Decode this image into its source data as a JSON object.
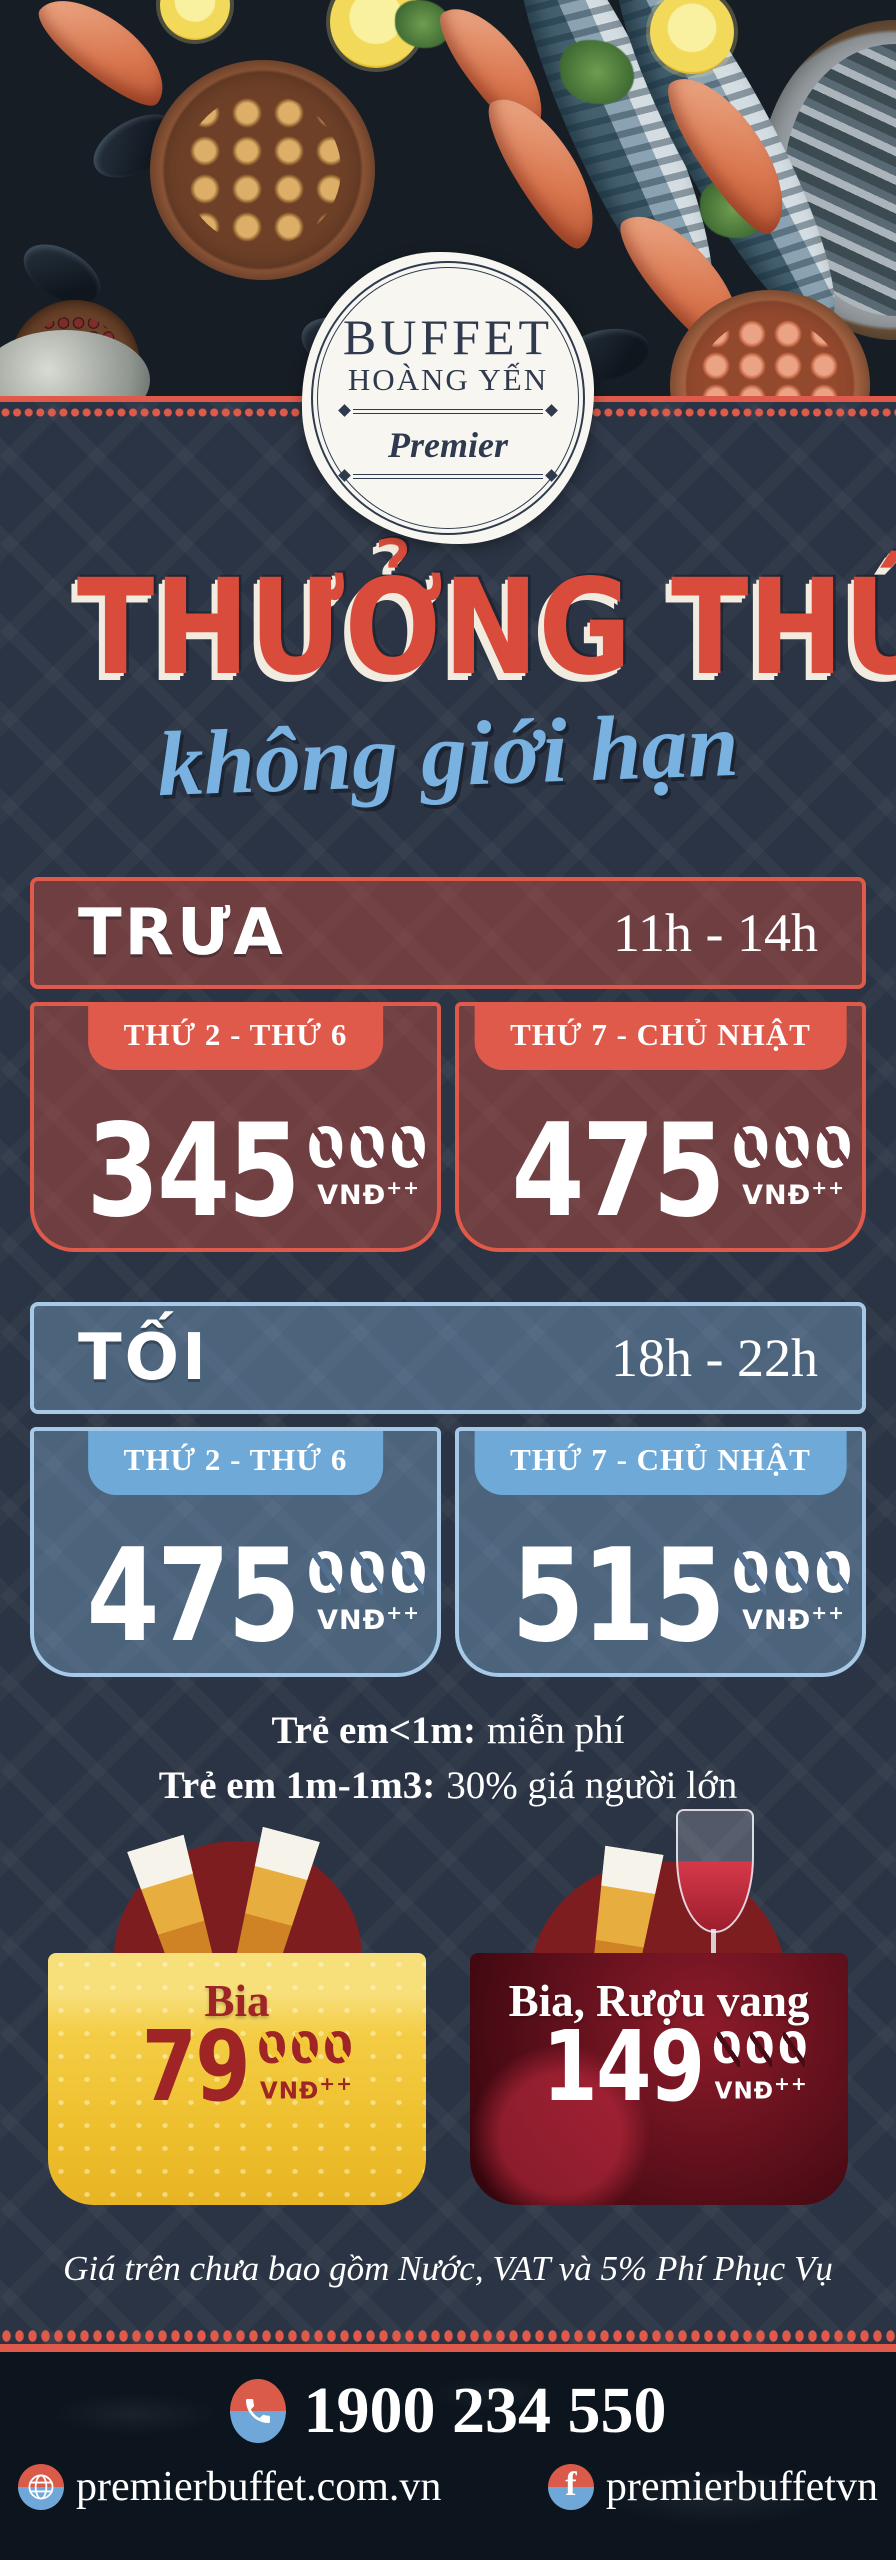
{
  "logo": {
    "name_line1": "BUFFET",
    "name_line2": "HOÀNG YẾN",
    "premier": "Premier"
  },
  "title": {
    "main": "THƯỞNG THỨC",
    "sub": "không giới hạn"
  },
  "sections": [
    {
      "label": "TRƯA",
      "time": "11h - 14h",
      "cards": [
        {
          "days": "THỨ 2 - THỨ 6",
          "amount": "345",
          "thousands": "000",
          "currency": "VNĐ",
          "surcharge": "++"
        },
        {
          "days": "THỨ 7 - CHỦ NHẬT",
          "amount": "475",
          "thousands": "000",
          "currency": "VNĐ",
          "surcharge": "++"
        }
      ]
    },
    {
      "label": "TỐI",
      "time": "18h - 22h",
      "cards": [
        {
          "days": "THỨ 2 - THỨ 6",
          "amount": "475",
          "thousands": "000",
          "currency": "VNĐ",
          "surcharge": "++"
        },
        {
          "days": "THỨ 7 - CHỦ NHẬT",
          "amount": "515",
          "thousands": "000",
          "currency": "VNĐ",
          "surcharge": "++"
        }
      ]
    }
  ],
  "children_policy": [
    {
      "label": "Trẻ em<1m:",
      "value": "miễn phí"
    },
    {
      "label": "Trẻ em 1m-1m3:",
      "value": "30% giá người lớn"
    }
  ],
  "drinks": [
    {
      "label": "Bia",
      "amount": "79",
      "thousands": "000",
      "currency": "VNĐ",
      "surcharge": "++"
    },
    {
      "label": "Bia, Rượu vang",
      "amount": "149",
      "thousands": "000",
      "currency": "VNĐ",
      "surcharge": "++"
    }
  ],
  "disclaimer": "Giá trên chưa bao gồm Nước, VAT và 5% Phí Phục Vụ",
  "contact": {
    "phone": "1900 234 550",
    "website": "premierbuffet.com.vn",
    "facebook": "premierbuffetvn"
  },
  "colors": {
    "accent_red": "#df5a4a",
    "title_red": "#d94b3b",
    "accent_blue": "#7fb3de",
    "script_blue": "#79b2e0",
    "navy_background": "#2b3444",
    "beer_yellow": "#f1c834",
    "beer_text_red": "#9e2426",
    "wine_dark_red": "#470d16"
  }
}
